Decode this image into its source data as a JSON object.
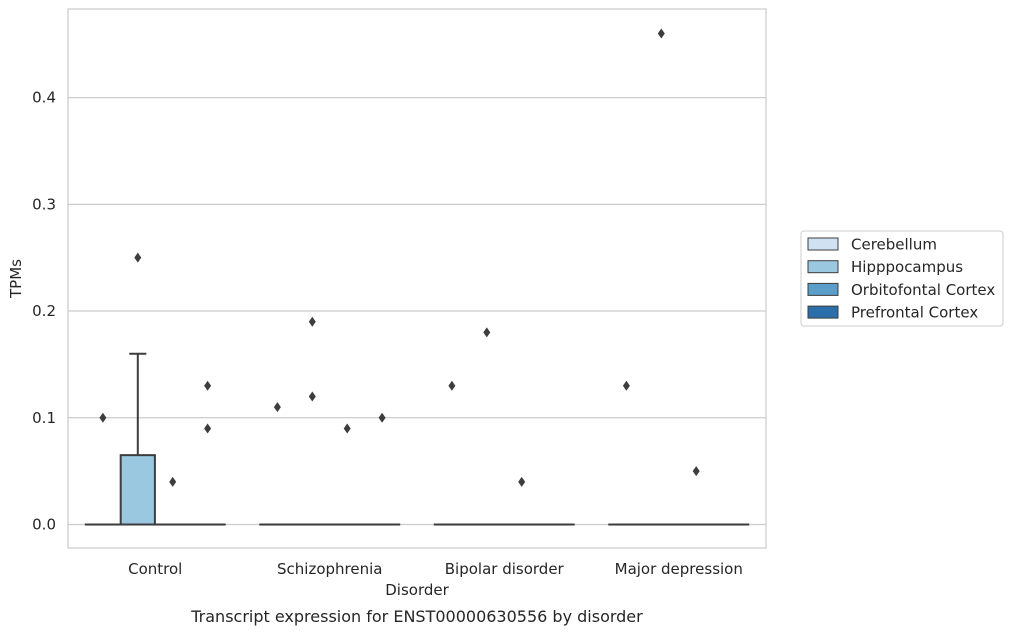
{
  "chart_data": {
    "type": "box",
    "title": "",
    "caption": "Transcript expression for ENST00000630556 by disorder",
    "xlabel": "Disorder",
    "ylabel": "TPMs",
    "ylim": [
      -0.022,
      0.483
    ],
    "yticks": [
      0.0,
      0.1,
      0.2,
      0.3,
      0.4
    ],
    "ytick_labels": [
      "0.0",
      "0.1",
      "0.2",
      "0.3",
      "0.4"
    ],
    "grid": "horizontal",
    "legend_position": "right",
    "categories": [
      "Control",
      "Schizophrenia",
      "Bipolar disorder",
      "Major depression"
    ],
    "series": [
      {
        "name": "Cerebellum",
        "color": "#d0e2f2",
        "boxes": [
          {
            "category": "Control",
            "q1": 0,
            "median": 0,
            "q3": 0,
            "whisker_low": 0,
            "whisker_high": 0,
            "outliers": [
              0.1
            ]
          },
          {
            "category": "Schizophrenia",
            "q1": 0,
            "median": 0,
            "q3": 0,
            "whisker_low": 0,
            "whisker_high": 0,
            "outliers": [
              0.11
            ]
          },
          {
            "category": "Bipolar disorder",
            "q1": 0,
            "median": 0,
            "q3": 0,
            "whisker_low": 0,
            "whisker_high": 0,
            "outliers": [
              0.13
            ]
          },
          {
            "category": "Major depression",
            "q1": 0,
            "median": 0,
            "q3": 0,
            "whisker_low": 0,
            "whisker_high": 0,
            "outliers": [
              0.13
            ]
          }
        ]
      },
      {
        "name": "Hipppocampus",
        "color": "#9ac8e0",
        "boxes": [
          {
            "category": "Control",
            "q1": 0,
            "median": 0,
            "q3": 0.065,
            "whisker_low": 0,
            "whisker_high": 0.16,
            "outliers": [
              0.25
            ]
          },
          {
            "category": "Schizophrenia",
            "q1": 0,
            "median": 0,
            "q3": 0,
            "whisker_low": 0,
            "whisker_high": 0,
            "outliers": [
              0.12,
              0.19
            ]
          },
          {
            "category": "Bipolar disorder",
            "q1": 0,
            "median": 0,
            "q3": 0,
            "whisker_low": 0,
            "whisker_high": 0,
            "outliers": [
              0.18
            ]
          },
          {
            "category": "Major depression",
            "q1": 0,
            "median": 0,
            "q3": 0,
            "whisker_low": 0,
            "whisker_high": 0,
            "outliers": [
              0.46
            ]
          }
        ]
      },
      {
        "name": "Orbitofontal Cortex",
        "color": "#5a9ec9",
        "boxes": [
          {
            "category": "Control",
            "q1": 0,
            "median": 0,
            "q3": 0,
            "whisker_low": 0,
            "whisker_high": 0,
            "outliers": [
              0.04
            ]
          },
          {
            "category": "Schizophrenia",
            "q1": 0,
            "median": 0,
            "q3": 0,
            "whisker_low": 0,
            "whisker_high": 0,
            "outliers": [
              0.09
            ]
          },
          {
            "category": "Bipolar disorder",
            "q1": 0,
            "median": 0,
            "q3": 0,
            "whisker_low": 0,
            "whisker_high": 0,
            "outliers": [
              0.04
            ]
          },
          {
            "category": "Major depression",
            "q1": 0,
            "median": 0,
            "q3": 0,
            "whisker_low": 0,
            "whisker_high": 0,
            "outliers": [
              0.05
            ]
          }
        ]
      },
      {
        "name": "Prefrontal Cortex",
        "color": "#2b6ea9",
        "boxes": [
          {
            "category": "Control",
            "q1": 0,
            "median": 0,
            "q3": 0,
            "whisker_low": 0,
            "whisker_high": 0,
            "outliers": [
              0.09,
              0.13
            ]
          },
          {
            "category": "Schizophrenia",
            "q1": 0,
            "median": 0,
            "q3": 0,
            "whisker_low": 0,
            "whisker_high": 0,
            "outliers": [
              0.1
            ]
          },
          {
            "category": "Bipolar disorder",
            "q1": 0,
            "median": 0,
            "q3": 0,
            "whisker_low": 0,
            "whisker_high": 0,
            "outliers": []
          },
          {
            "category": "Major depression",
            "q1": 0,
            "median": 0,
            "q3": 0,
            "whisker_low": 0,
            "whisker_high": 0,
            "outliers": []
          }
        ]
      }
    ]
  }
}
